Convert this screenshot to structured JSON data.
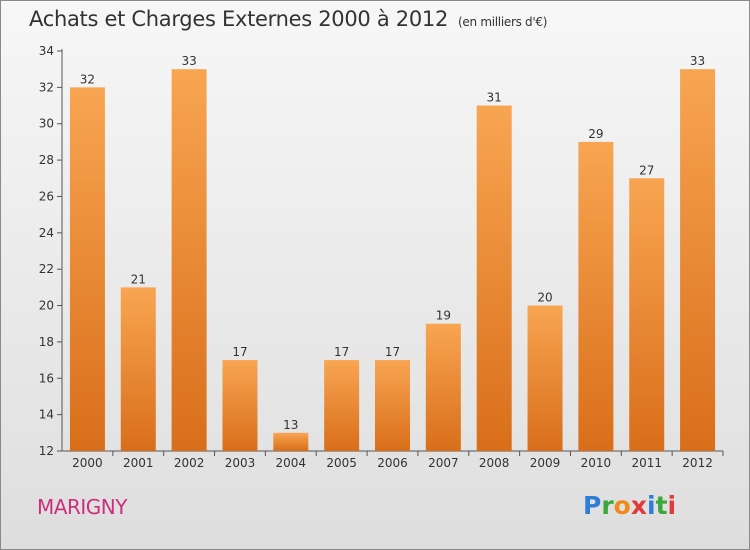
{
  "title": "Achats et Charges Externes 2000 à 2012",
  "unit": "(en milliers d'€)",
  "city": "MARIGNY",
  "logo": {
    "text": "Proxiti",
    "letter_colors": [
      "#2e7ed6",
      "#3aa83a",
      "#f08a1a",
      "#e23a3a",
      "#2e7ed6",
      "#3aa83a",
      "#e23a3a"
    ]
  },
  "colors": {
    "bar_top": "#f8a552",
    "bar_bottom": "#d96e1a",
    "city": "#cc2f80"
  },
  "chart_data": {
    "type": "bar",
    "title": "Achats et Charges Externes 2000 à 2012",
    "xlabel": "",
    "ylabel": "",
    "categories": [
      "2000",
      "2001",
      "2002",
      "2003",
      "2004",
      "2005",
      "2006",
      "2007",
      "2008",
      "2009",
      "2010",
      "2011",
      "2012"
    ],
    "values": [
      32,
      21,
      33,
      17,
      13,
      17,
      17,
      19,
      31,
      20,
      29,
      27,
      33
    ],
    "ylim": [
      12,
      34
    ],
    "yticks": [
      12,
      14,
      16,
      18,
      20,
      22,
      24,
      26,
      28,
      30,
      32,
      34
    ],
    "grid": false,
    "data_labels": true
  }
}
